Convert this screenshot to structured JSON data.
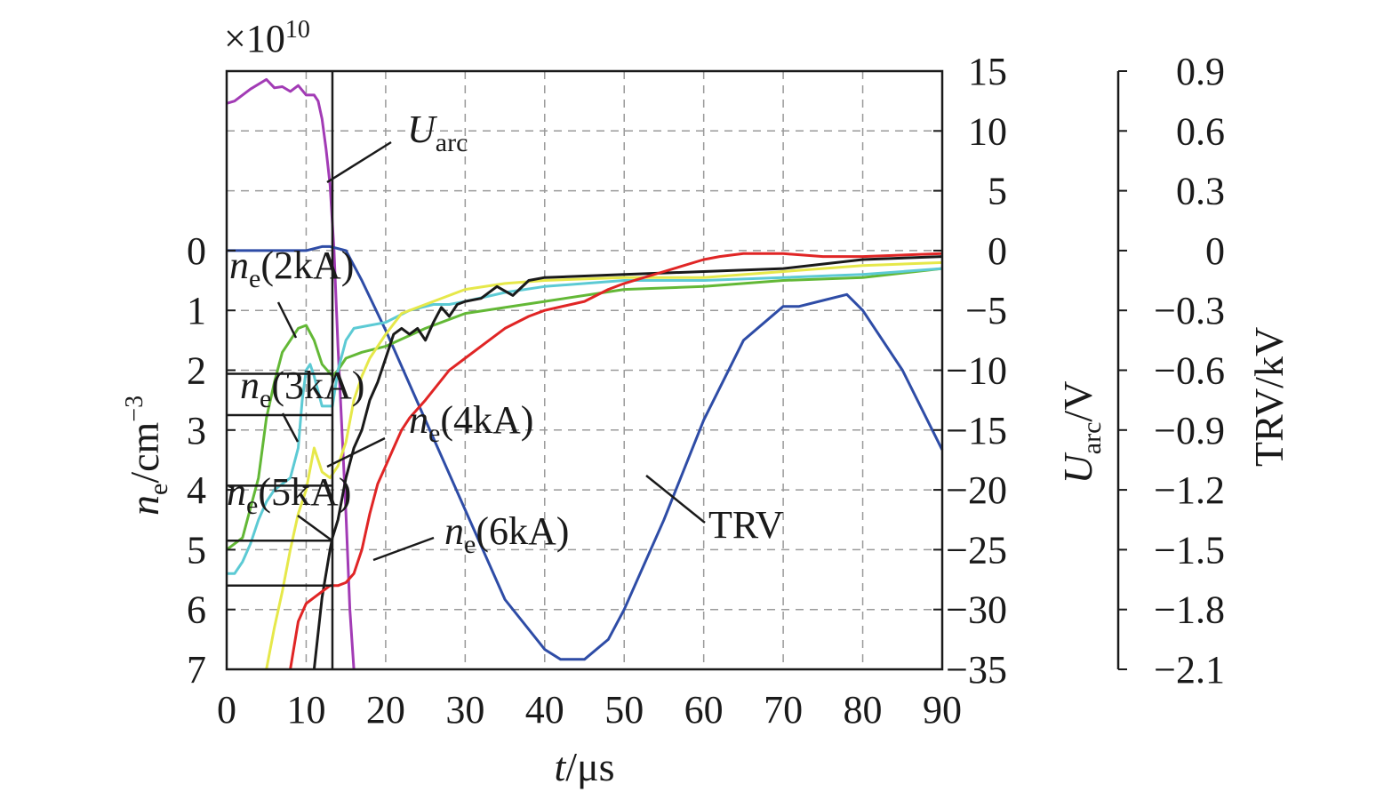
{
  "chart_data": {
    "type": "line",
    "xlabel": {
      "italic": "t",
      "rest": "/μs"
    },
    "x_ticks": [
      0,
      10,
      20,
      30,
      40,
      50,
      60,
      70,
      80,
      90
    ],
    "xlim": [
      0,
      90
    ],
    "left_axis": {
      "label": {
        "italic": "n",
        "sub": "e",
        "rest": "/cm",
        "sup": "−3"
      },
      "multiplier": {
        "base": "×10",
        "exp": "10"
      },
      "ticks": [
        {
          "v": 0,
          "t": "0"
        },
        {
          "v": 1,
          "t": "1"
        },
        {
          "v": 2,
          "t": "2"
        },
        {
          "v": 3,
          "t": "3"
        },
        {
          "v": 4,
          "t": "4"
        },
        {
          "v": 5,
          "t": "5"
        },
        {
          "v": 6,
          "t": "6"
        },
        {
          "v": 7,
          "t": "7"
        }
      ],
      "ylim": [
        0,
        7
      ],
      "reversed": true
    },
    "right_axis_1": {
      "label": {
        "italic": "U",
        "sub": "arc",
        "rest": "/V"
      },
      "ticks": [
        {
          "v": 15,
          "t": "15"
        },
        {
          "v": 10,
          "t": "10"
        },
        {
          "v": 5,
          "t": "5"
        },
        {
          "v": 0,
          "t": "0"
        },
        {
          "v": -5,
          "t": "−5"
        },
        {
          "v": -10,
          "t": "−10"
        },
        {
          "v": -15,
          "t": "−15"
        },
        {
          "v": -20,
          "t": "−20"
        },
        {
          "v": -25,
          "t": "−25"
        },
        {
          "v": -30,
          "t": "−30"
        },
        {
          "v": -35,
          "t": "−35"
        }
      ],
      "ylim": [
        -35,
        15
      ]
    },
    "right_axis_2": {
      "label": "TRV/kV",
      "ticks": [
        {
          "v": 0.9,
          "t": "0.9"
        },
        {
          "v": 0.6,
          "t": "0.6"
        },
        {
          "v": 0.3,
          "t": "0.3"
        },
        {
          "v": 0,
          "t": "0"
        },
        {
          "v": -0.3,
          "t": "−0.3"
        },
        {
          "v": -0.6,
          "t": "−0.6"
        },
        {
          "v": -0.9,
          "t": "−0.9"
        },
        {
          "v": -1.2,
          "t": "−1.2"
        },
        {
          "v": -1.5,
          "t": "−1.5"
        },
        {
          "v": -1.8,
          "t": "−1.8"
        },
        {
          "v": -2.1,
          "t": "−2.1"
        }
      ],
      "ylim": [
        -2.1,
        0.9
      ]
    },
    "grid": true,
    "marker_line_x": 13.3,
    "series": [
      {
        "name": "U_arc",
        "axis": "right1",
        "color": "#a23bb5",
        "x": [
          0,
          1,
          3,
          5,
          6,
          7,
          8,
          9,
          10,
          10.5,
          11,
          11.5,
          12,
          12.5,
          13,
          13.5,
          14,
          15,
          15.5,
          16
        ],
        "y": [
          12.3,
          12.5,
          13.5,
          14.3,
          13.6,
          13.7,
          13.3,
          13.8,
          13,
          13,
          13,
          12.5,
          11,
          8.5,
          5.5,
          0,
          -8,
          -22,
          -30,
          -35
        ]
      },
      {
        "name": "TRV",
        "axis": "right2",
        "color": "#2e4ca6",
        "x": [
          0,
          5,
          10,
          12,
          13,
          15,
          17,
          20,
          25,
          30,
          35,
          40,
          42,
          45,
          48,
          50,
          55,
          60,
          65,
          70,
          72,
          75,
          78,
          80,
          85,
          90
        ],
        "y": [
          0,
          0,
          0,
          0.02,
          0.02,
          0,
          -0.15,
          -0.4,
          -0.85,
          -1.3,
          -1.75,
          -2.0,
          -2.05,
          -2.05,
          -1.95,
          -1.8,
          -1.35,
          -0.85,
          -0.45,
          -0.28,
          -0.28,
          -0.25,
          -0.22,
          -0.3,
          -0.6,
          -1.0
        ]
      },
      {
        "name": "ne(2kA)",
        "axis": "left",
        "color": "#63b836",
        "x": [
          0,
          2,
          4,
          5,
          6,
          7,
          8,
          9,
          10,
          11,
          12,
          13.3,
          14,
          15,
          17,
          20,
          25,
          30,
          40,
          50,
          60,
          70,
          80,
          90
        ],
        "y": [
          5.0,
          4.8,
          3.8,
          2.8,
          2.2,
          1.7,
          1.5,
          1.3,
          1.25,
          1.5,
          1.9,
          2.1,
          2.0,
          1.8,
          1.7,
          1.6,
          1.3,
          1.05,
          0.85,
          0.65,
          0.6,
          0.5,
          0.45,
          0.3
        ]
      },
      {
        "name": "ne(3kA)",
        "axis": "left",
        "color": "#5ccad4",
        "x": [
          0,
          1,
          2,
          3,
          4,
          5,
          6,
          7,
          8,
          9,
          9.5,
          10,
          10.5,
          11,
          12,
          13.3,
          14,
          15,
          16,
          18,
          20,
          23,
          26,
          28,
          30,
          35,
          40,
          50,
          60,
          70,
          80,
          90
        ],
        "y": [
          5.4,
          5.4,
          5.2,
          4.9,
          4.5,
          4.2,
          4.0,
          3.9,
          3.8,
          3.3,
          2.5,
          2.0,
          1.9,
          2.1,
          2.6,
          2.6,
          2.0,
          1.5,
          1.3,
          1.25,
          1.2,
          1.0,
          0.9,
          0.9,
          0.85,
          0.7,
          0.6,
          0.5,
          0.5,
          0.45,
          0.4,
          0.3
        ]
      },
      {
        "name": "ne(4kA)",
        "axis": "left",
        "color": "#e6e84a",
        "x": [
          5,
          6,
          7,
          8,
          9,
          10,
          11,
          12,
          13,
          14,
          15,
          16,
          17,
          18,
          20,
          22,
          25,
          28,
          30,
          35,
          40,
          50,
          60,
          70,
          80,
          90
        ],
        "y": [
          7.0,
          6.3,
          5.7,
          5.0,
          4.4,
          4.0,
          3.3,
          3.7,
          3.8,
          3.6,
          3.2,
          2.5,
          2.1,
          1.8,
          1.4,
          1.05,
          0.9,
          0.75,
          0.65,
          0.55,
          0.5,
          0.45,
          0.45,
          0.35,
          0.25,
          0.2
        ]
      },
      {
        "name": "ne(5kA)",
        "axis": "left",
        "color": "#1a1a1a",
        "x": [
          11,
          12,
          13,
          13.3,
          14,
          15,
          16,
          17,
          18,
          19,
          20,
          21,
          22,
          23,
          24,
          25,
          26,
          27,
          28,
          29,
          30,
          32,
          34,
          36,
          38,
          40,
          50,
          60,
          70,
          80,
          90
        ],
        "y": [
          7.0,
          5.8,
          5.0,
          4.8,
          4.5,
          3.8,
          3.3,
          3.0,
          2.5,
          2.2,
          1.8,
          1.4,
          1.3,
          1.4,
          1.3,
          1.5,
          1.2,
          0.95,
          1.1,
          0.9,
          0.85,
          0.8,
          0.6,
          0.75,
          0.5,
          0.45,
          0.4,
          0.35,
          0.3,
          0.15,
          0.1
        ]
      },
      {
        "name": "ne(6kA)",
        "axis": "left",
        "color": "#e02525",
        "x": [
          8,
          9,
          10,
          11,
          12,
          13,
          14,
          15,
          16,
          17,
          18,
          19,
          20,
          21,
          22,
          23,
          25,
          28,
          30,
          33,
          35,
          38,
          40,
          45,
          48,
          50,
          55,
          60,
          62,
          65,
          70,
          75,
          80,
          90
        ],
        "y": [
          7.0,
          6.2,
          5.9,
          5.8,
          5.7,
          5.6,
          5.6,
          5.55,
          5.4,
          5.0,
          4.4,
          3.9,
          3.6,
          3.3,
          3.0,
          2.8,
          2.5,
          2.0,
          1.8,
          1.5,
          1.3,
          1.1,
          1.0,
          0.85,
          0.65,
          0.55,
          0.35,
          0.15,
          0.1,
          0.05,
          0.05,
          0.1,
          0.1,
          0.05
        ]
      }
    ],
    "annotations": [
      {
        "id": "uarc",
        "italic": "U",
        "sub": "arc",
        "rest": "",
        "color": "#1a1a1a"
      },
      {
        "id": "ne2",
        "italic": "n",
        "sub": "e",
        "rest": "(2kA)",
        "color": "#1a1a1a"
      },
      {
        "id": "ne3",
        "italic": "n",
        "sub": "e",
        "rest": "(3kA)",
        "color": "#1a1a1a"
      },
      {
        "id": "ne4",
        "italic": "n",
        "sub": "e",
        "rest": "(4kA)",
        "color": "#1a1a1a"
      },
      {
        "id": "ne5",
        "italic": "n",
        "sub": "e",
        "rest": "(5kA)",
        "color": "#1a1a1a"
      },
      {
        "id": "ne6",
        "italic": "n",
        "sub": "e",
        "rest": "(6kA)",
        "color": "#1a1a1a"
      },
      {
        "id": "trv",
        "italic": "",
        "sub": "",
        "rest": "TRV",
        "color": "#1a1a1a"
      }
    ]
  }
}
